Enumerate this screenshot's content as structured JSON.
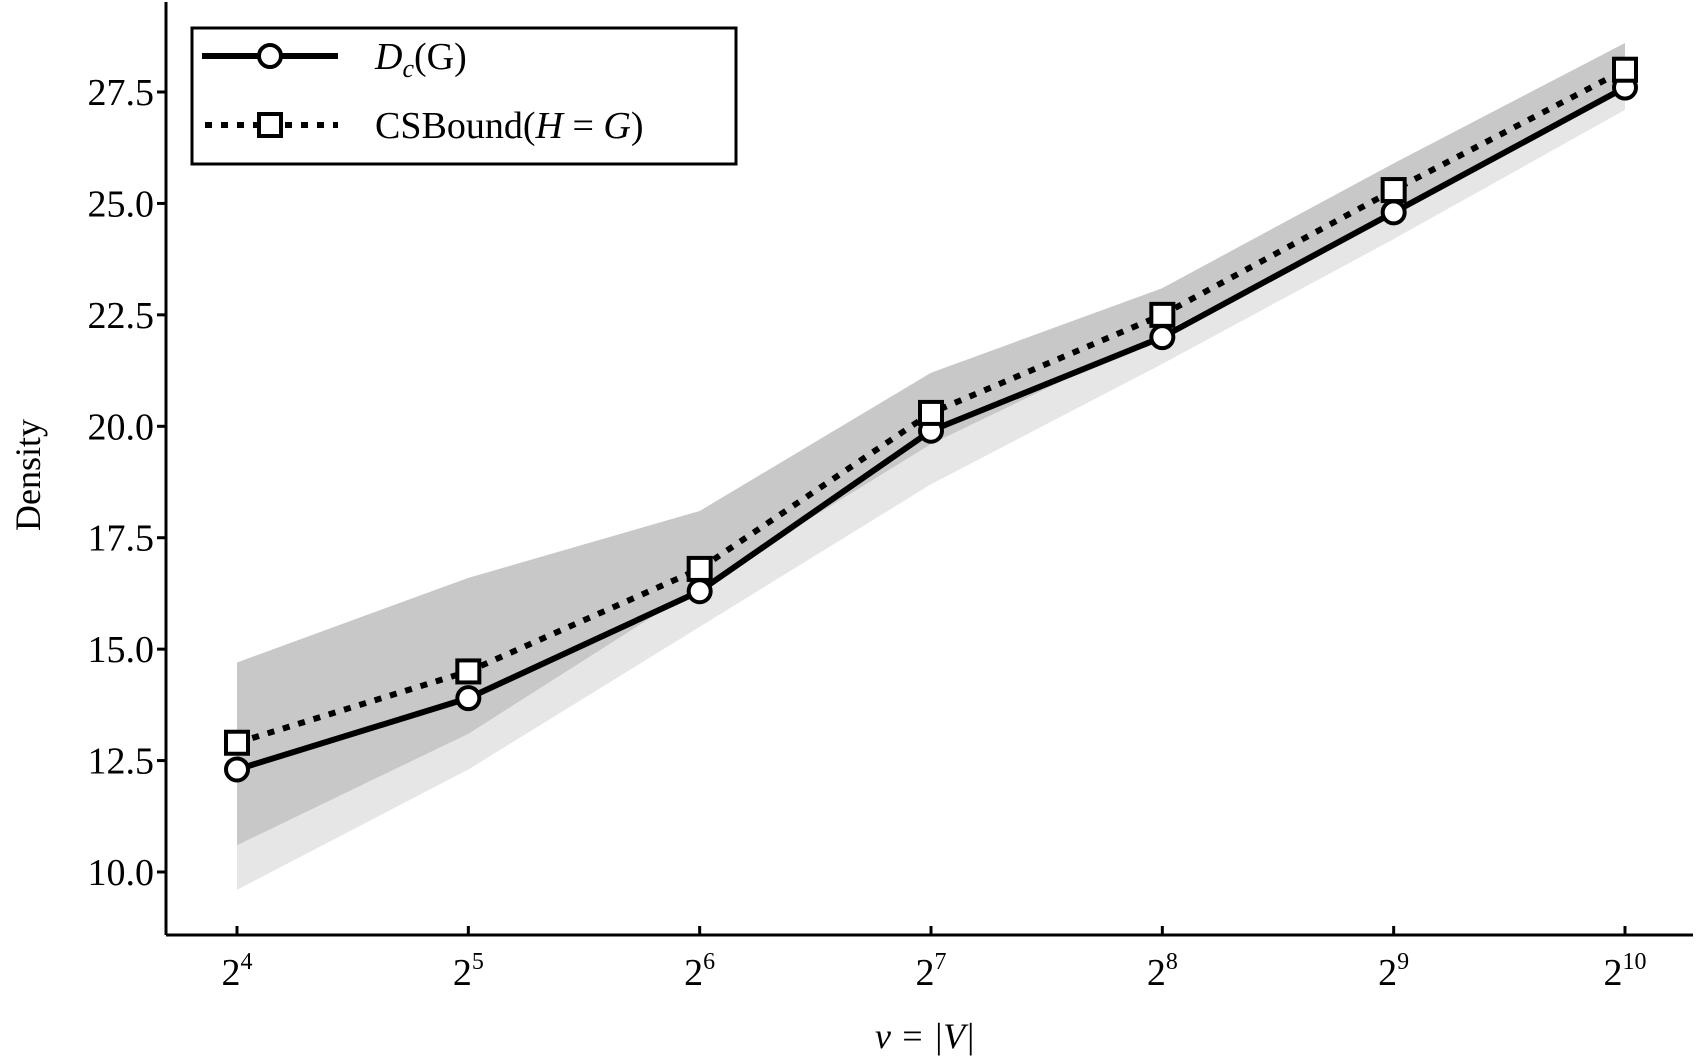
{
  "chart_data": {
    "type": "line",
    "xlabel": "v = |V|",
    "ylabel": "Density",
    "xscale": "log2",
    "x": [
      16,
      32,
      64,
      128,
      256,
      512,
      1024
    ],
    "x_ticks": [
      {
        "base": "2",
        "exp": "4"
      },
      {
        "base": "2",
        "exp": "5"
      },
      {
        "base": "2",
        "exp": "6"
      },
      {
        "base": "2",
        "exp": "7"
      },
      {
        "base": "2",
        "exp": "8"
      },
      {
        "base": "2",
        "exp": "9"
      },
      {
        "base": "2",
        "exp": "10"
      }
    ],
    "ylim": [
      8.6,
      29.5
    ],
    "y_ticks": [
      "10.0",
      "12.5",
      "15.0",
      "17.5",
      "20.0",
      "22.5",
      "25.0",
      "27.5"
    ],
    "grid": false,
    "legend_position": "top-left",
    "series": [
      {
        "name": "Dc(G)",
        "label_parts": {
          "main": "D",
          "sub": "c",
          "rest": "(G)"
        },
        "line_style": "solid",
        "marker": "circle",
        "values": [
          12.3,
          13.9,
          16.3,
          19.9,
          22.0,
          24.8,
          27.6
        ],
        "band_low": [
          9.6,
          12.3,
          15.5,
          18.7,
          21.4,
          24.2,
          27.1
        ],
        "band_high": [
          10.6,
          13.1,
          16.4,
          19.6,
          22.1,
          24.8,
          27.6
        ]
      },
      {
        "name": "CSBound(H = G)",
        "label_parts": {
          "pre": "CSBound(",
          "h": "H",
          "eq": " = ",
          "g": "G",
          "post": ")"
        },
        "line_style": "dotted",
        "marker": "square",
        "values": [
          12.9,
          14.5,
          16.8,
          20.3,
          22.5,
          25.3,
          28.0
        ],
        "band_low": [
          10.6,
          13.1,
          16.4,
          19.6,
          22.1,
          24.8,
          27.6
        ],
        "band_high": [
          14.7,
          16.6,
          18.1,
          21.2,
          23.1,
          25.9,
          28.6
        ]
      }
    ],
    "colors": {
      "line": "#000000",
      "band_light": "#e6e6e6",
      "band_dark": "#c8c8c8",
      "marker_fill": "#ffffff"
    }
  }
}
